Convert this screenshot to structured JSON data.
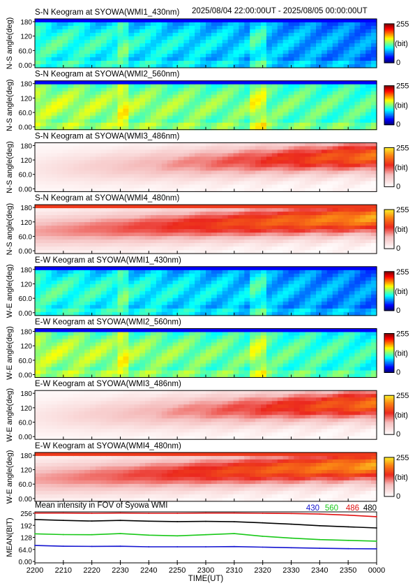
{
  "header": {
    "time_range": "2025/08/04 22:00:00UT - 2025/08/05 00:00:00UT"
  },
  "colorbar": {
    "max_label": "255",
    "unit_label": "(bit)",
    "min_label": "0"
  },
  "x_axis": {
    "label": "TIME(UT)",
    "ticks": [
      "2200",
      "2210",
      "2220",
      "2230",
      "2240",
      "2250",
      "2300",
      "2310",
      "2320",
      "2330",
      "2340",
      "2350",
      "0000"
    ]
  },
  "keograms": [
    {
      "title": "S-N Keogram at SYOWA(WMI1_430nm)",
      "ylabel": "N-S angle(deg)",
      "palette": "jet",
      "base": 0.33,
      "trend": -0.12
    },
    {
      "title": "S-N Keogram at SYOWA(WMI2_560nm)",
      "ylabel": "N-S angle(deg)",
      "palette": "jet",
      "base": 0.45,
      "trend": -0.05
    },
    {
      "title": "S-N Keogram at SYOWA(WMI3_486nm)",
      "ylabel": "N-S angle(deg)",
      "palette": "redwhite",
      "base": 0.1,
      "trend": 0.65
    },
    {
      "title": "S-N Keogram at SYOWA(WMI4_480nm)",
      "ylabel": "N-S angle(deg)",
      "palette": "redwhite",
      "base": 0.35,
      "trend": 0.5
    },
    {
      "title": "E-W Keogram at SYOWA(WMI1_430nm)",
      "ylabel": "W-E angle(deg)",
      "palette": "jet",
      "base": 0.33,
      "trend": -0.12
    },
    {
      "title": "E-W Keogram at SYOWA(WMI2_560nm)",
      "ylabel": "W-E angle(deg)",
      "palette": "jet",
      "base": 0.45,
      "trend": -0.08
    },
    {
      "title": "E-W Keogram at SYOWA(WMI3_486nm)",
      "ylabel": "W-E angle(deg)",
      "palette": "redwhite",
      "base": 0.1,
      "trend": 0.65
    },
    {
      "title": "E-W Keogram at SYOWA(WMI4_480nm)",
      "ylabel": "W-E angle(deg)",
      "palette": "redwhite",
      "base": 0.35,
      "trend": 0.5
    }
  ],
  "keogram_y_ticks": [
    "180",
    "120",
    "60.0",
    "0.00"
  ],
  "chart_data": {
    "type": "line",
    "title": "Mean intensity in FOV of Syowa WMI",
    "xlabel": "TIME(UT)",
    "ylabel": "MEAN(BIT)",
    "ylim": [
      0,
      256
    ],
    "yticks": [
      "256",
      "192",
      "128",
      "64.0",
      "0.00"
    ],
    "legend_position": "top-right",
    "x": [
      "2200",
      "2210",
      "2220",
      "2230",
      "2240",
      "2250",
      "2300",
      "2310",
      "2320",
      "2330",
      "2340",
      "2350",
      "0000"
    ],
    "series": [
      {
        "name": "430",
        "color": "#1414d0",
        "values": [
          85,
          81,
          80,
          81,
          78,
          78,
          78,
          79,
          76,
          73,
          70,
          68,
          67
        ]
      },
      {
        "name": "560",
        "color": "#18c818",
        "values": [
          147,
          143,
          142,
          148,
          140,
          136,
          142,
          148,
          134,
          124,
          116,
          112,
          108
        ]
      },
      {
        "name": "486",
        "color": "#e01010",
        "values": [
          257,
          257,
          256,
          257,
          256,
          256,
          257,
          257,
          256,
          255,
          252,
          246,
          238
        ]
      },
      {
        "name": "480",
        "color": "#000000",
        "values": [
          223,
          218,
          215,
          218,
          214,
          212,
          213,
          211,
          205,
          198,
          190,
          184,
          178
        ]
      }
    ]
  }
}
